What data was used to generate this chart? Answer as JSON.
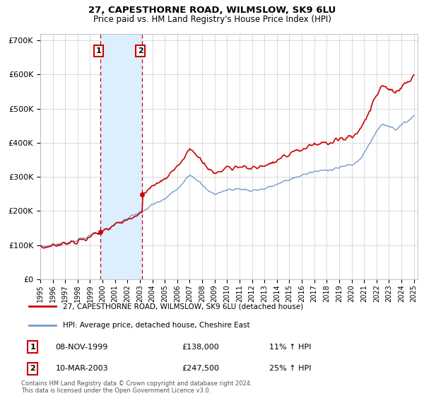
{
  "title": "27, CAPESTHORNE ROAD, WILMSLOW, SK9 6LU",
  "subtitle": "Price paid vs. HM Land Registry's House Price Index (HPI)",
  "legend_line1": "27, CAPESTHORNE ROAD, WILMSLOW, SK9 6LU (detached house)",
  "legend_line2": "HPI: Average price, detached house, Cheshire East",
  "transaction1_label": "1",
  "transaction1_date": "08-NOV-1999",
  "transaction1_price": "£138,000",
  "transaction1_hpi": "11% ↑ HPI",
  "transaction2_label": "2",
  "transaction2_date": "10-MAR-2003",
  "transaction2_price": "£247,500",
  "transaction2_hpi": "25% ↑ HPI",
  "footer": "Contains HM Land Registry data © Crown copyright and database right 2024.\nThis data is licensed under the Open Government Licence v3.0.",
  "hpi_color": "#7799cc",
  "price_color": "#cc0000",
  "highlight_color": "#ddeeff",
  "box_color": "#cc0000",
  "ylim_min": 0,
  "ylim_max": 720000,
  "yticks": [
    0,
    100000,
    200000,
    300000,
    400000,
    500000,
    600000,
    700000
  ],
  "transaction1_x": 1999.85,
  "transaction1_y": 138000,
  "transaction2_x": 2003.19,
  "transaction2_y": 247500,
  "shade_x1": 1999.85,
  "shade_x2": 2003.19,
  "xmin": 1995.0,
  "xmax": 2025.3
}
